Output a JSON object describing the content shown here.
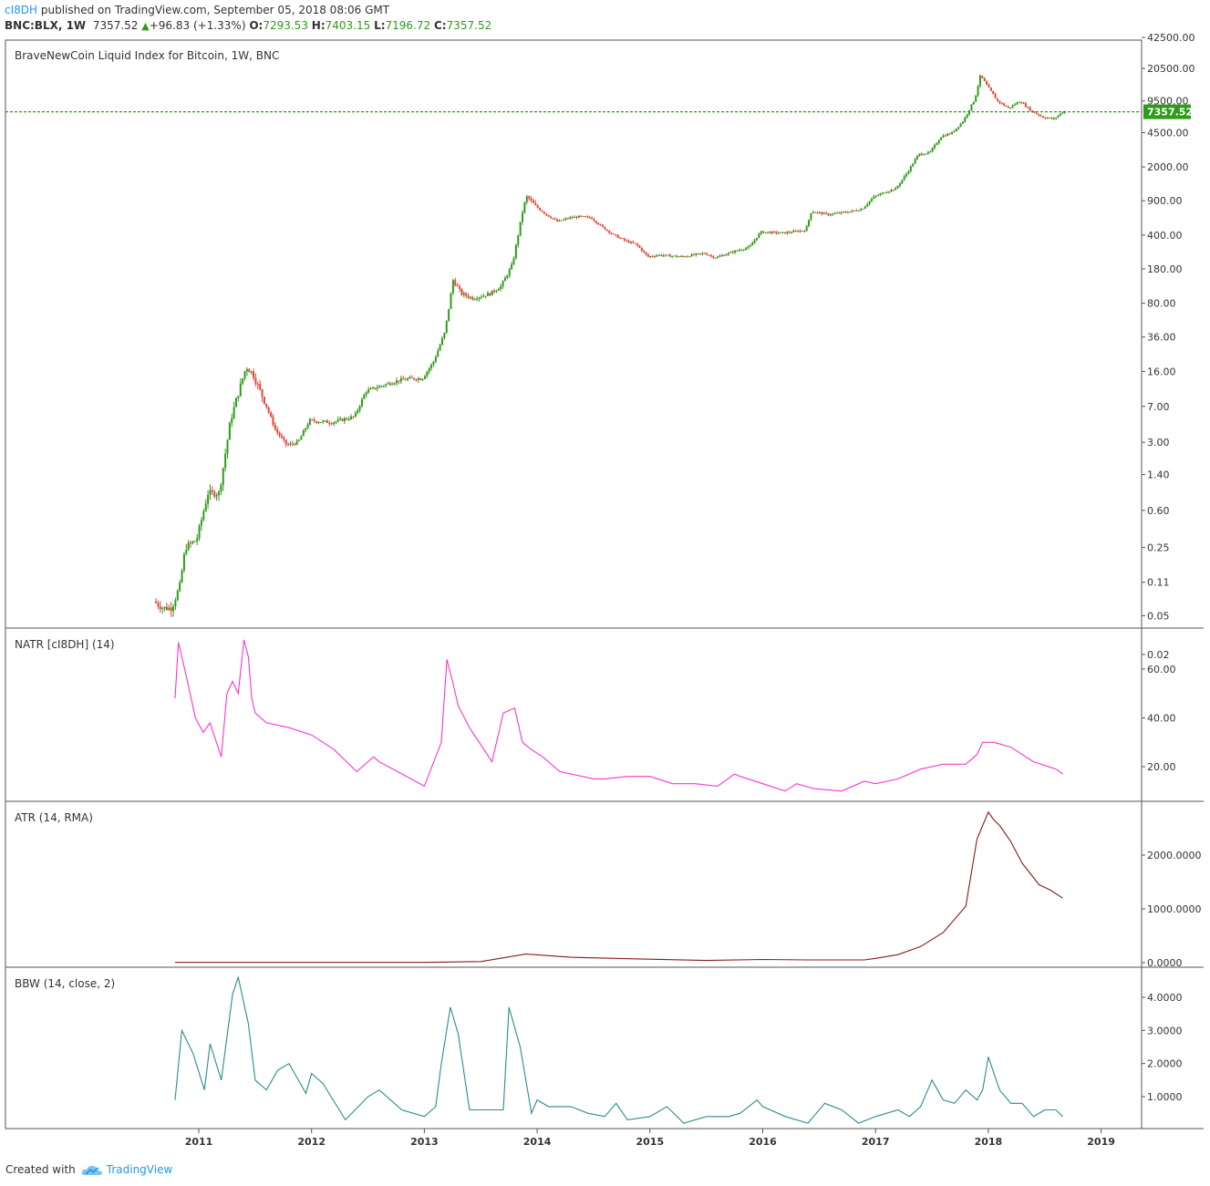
{
  "header": {
    "author": "cI8DH",
    "published": "published on TradingView.com, September 05, 2018 08:06 GMT",
    "symbol": "BNC:BLX, 1W",
    "last": "7357.52",
    "change_arrow": "▲",
    "change": "+96.83 (+1.33%)",
    "o_label": "O:",
    "o": "7293.53",
    "h_label": "H:",
    "h": "7403.15",
    "l_label": "L:",
    "l": "7196.72",
    "c_label": "C:",
    "c": "7357.52"
  },
  "footer": {
    "created_with": "Created with",
    "brand": "TradingView"
  },
  "colors": {
    "up": "#2e9c1a",
    "down": "#e0483c",
    "natr": "#ff33cc",
    "atr": "#8b1a1a",
    "bbw": "#2a8c8c",
    "last_line": "#2e9c1a",
    "grid": "#555555"
  },
  "chart_data": [
    {
      "type": "candlestick",
      "title": "BraveNewCoin Liquid Index for Bitcoin, 1W, BNC",
      "y_scale": "log",
      "y_ticks": [
        "42500.00",
        "20500.00",
        "9500.00",
        "4500.00",
        "2000.00",
        "900.00",
        "400.00",
        "180.00",
        "80.00",
        "36.00",
        "16.00",
        "7.00",
        "3.00",
        "1.40",
        "0.60",
        "0.25",
        "0.11",
        "0.05",
        "0.02"
      ],
      "last_price_label": "7357.52",
      "x_ticks": [
        "2011",
        "2012",
        "2013",
        "2014",
        "2015",
        "2016",
        "2017",
        "2018",
        "2019"
      ],
      "trend": {
        "t": [
          2010.62,
          2010.7,
          2010.78,
          2010.85,
          2010.9,
          2011.0,
          2011.1,
          2011.2,
          2011.3,
          2011.35,
          2011.44,
          2011.5,
          2011.6,
          2011.7,
          2011.8,
          2011.9,
          2012.0,
          2012.2,
          2012.4,
          2012.5,
          2012.6,
          2012.7,
          2012.8,
          2012.9,
          2013.0,
          2013.1,
          2013.2,
          2013.25,
          2013.27,
          2013.35,
          2013.45,
          2013.6,
          2013.7,
          2013.8,
          2013.9,
          2013.93,
          2014.0,
          2014.1,
          2014.2,
          2014.3,
          2014.4,
          2014.5,
          2014.6,
          2014.7,
          2014.8,
          2014.9,
          2015.0,
          2015.1,
          2015.3,
          2015.5,
          2015.6,
          2015.8,
          2015.9,
          2016.0,
          2016.2,
          2016.4,
          2016.45,
          2016.6,
          2016.8,
          2016.9,
          2017.0,
          2017.1,
          2017.2,
          2017.3,
          2017.4,
          2017.5,
          2017.6,
          2017.7,
          2017.8,
          2017.9,
          2017.95,
          2018.0,
          2018.1,
          2018.2,
          2018.3,
          2018.4,
          2018.5,
          2018.6,
          2018.68
        ],
        "v": [
          0.07,
          0.06,
          0.06,
          0.1,
          0.25,
          0.3,
          0.9,
          0.9,
          5,
          8,
          18,
          15,
          8,
          4,
          2.8,
          3,
          5,
          4.8,
          5.5,
          10,
          11,
          12,
          13,
          13.5,
          13.5,
          20,
          40,
          90,
          140,
          100,
          90,
          100,
          120,
          200,
          800,
          1000,
          800,
          650,
          550,
          600,
          620,
          600,
          480,
          400,
          350,
          320,
          240,
          250,
          240,
          260,
          235,
          280,
          300,
          430,
          420,
          450,
          700,
          650,
          700,
          740,
          980,
          1100,
          1200,
          1750,
          2700,
          2800,
          4100,
          4500,
          6000,
          10000,
          17500,
          14000,
          9500,
          8000,
          9500,
          7500,
          6500,
          6200,
          7357.52
        ]
      }
    },
    {
      "type": "line",
      "title": "NATR [cI8DH] (14)",
      "y_ticks": [
        "60.00",
        "40.00",
        "20.00"
      ],
      "ylim": [
        10,
        75
      ],
      "x": [
        2010.79,
        2010.82,
        2010.9,
        2010.97,
        2011.04,
        2011.1,
        2011.2,
        2011.25,
        2011.3,
        2011.35,
        2011.4,
        2011.44,
        2011.47,
        2011.5,
        2011.6,
        2011.8,
        2012.0,
        2012.2,
        2012.4,
        2012.55,
        2012.6,
        2012.8,
        2013.0,
        2013.15,
        2013.2,
        2013.25,
        2013.3,
        2013.4,
        2013.6,
        2013.7,
        2013.8,
        2013.87,
        2013.95,
        2014.05,
        2014.2,
        2014.4,
        2014.5,
        2014.6,
        2014.8,
        2015.0,
        2015.2,
        2015.4,
        2015.6,
        2015.75,
        2015.8,
        2016.0,
        2016.2,
        2016.3,
        2016.45,
        2016.7,
        2016.9,
        2017.0,
        2017.2,
        2017.4,
        2017.6,
        2017.8,
        2017.9,
        2017.95,
        2018.05,
        2018.2,
        2018.4,
        2018.6,
        2018.66
      ],
      "y": [
        48,
        71,
        55,
        40,
        34,
        38,
        24,
        50,
        55,
        50,
        72,
        65,
        48,
        42,
        38,
        36,
        33,
        27,
        18,
        24,
        22,
        17,
        12,
        30,
        64,
        55,
        45,
        36,
        22,
        42,
        44,
        30,
        27,
        24,
        18,
        16,
        15,
        15,
        16,
        16,
        13,
        13,
        12,
        17,
        16,
        13,
        10,
        13,
        11,
        10,
        14,
        13,
        15,
        19,
        21,
        21,
        25,
        30,
        30,
        28,
        22,
        19,
        17
      ]
    },
    {
      "type": "line",
      "title": "ATR (14, RMA)",
      "y_ticks": [
        "2000.0000",
        "1000.0000",
        "0.0000"
      ],
      "ylim": [
        0,
        2800
      ],
      "x": [
        2010.79,
        2013.0,
        2013.5,
        2013.9,
        2014.3,
        2014.9,
        2015.5,
        2016.0,
        2016.4,
        2016.9,
        2017.0,
        2017.2,
        2017.4,
        2017.6,
        2017.8,
        2017.9,
        2018.0,
        2018.05,
        2018.1,
        2018.2,
        2018.3,
        2018.45,
        2018.55,
        2018.66
      ],
      "y": [
        5,
        5,
        20,
        160,
        100,
        70,
        40,
        60,
        50,
        50,
        80,
        150,
        300,
        560,
        1050,
        2300,
        2800,
        2650,
        2550,
        2250,
        1850,
        1450,
        1350,
        1200
      ]
    },
    {
      "type": "line",
      "title": "BBW (14, close, 2)",
      "y_ticks": [
        "4.0000",
        "3.0000",
        "2.0000",
        "1.0000"
      ],
      "ylim": [
        0,
        4.7
      ],
      "x": [
        2010.79,
        2010.85,
        2010.95,
        2011.05,
        2011.1,
        2011.2,
        2011.3,
        2011.35,
        2011.44,
        2011.5,
        2011.6,
        2011.7,
        2011.8,
        2011.95,
        2012.0,
        2012.1,
        2012.3,
        2012.5,
        2012.6,
        2012.8,
        2012.9,
        2013.0,
        2013.1,
        2013.15,
        2013.23,
        2013.3,
        2013.4,
        2013.6,
        2013.7,
        2013.75,
        2013.85,
        2013.95,
        2014.0,
        2014.1,
        2014.3,
        2014.45,
        2014.6,
        2014.7,
        2014.8,
        2015.0,
        2015.15,
        2015.3,
        2015.5,
        2015.7,
        2015.8,
        2015.95,
        2016.0,
        2016.2,
        2016.4,
        2016.55,
        2016.7,
        2016.85,
        2017.0,
        2017.2,
        2017.3,
        2017.4,
        2017.5,
        2017.6,
        2017.7,
        2017.8,
        2017.9,
        2017.95,
        2018.0,
        2018.1,
        2018.2,
        2018.3,
        2018.4,
        2018.5,
        2018.6,
        2018.66
      ],
      "y": [
        0.9,
        3,
        2.3,
        1.2,
        2.6,
        1.5,
        4.1,
        4.6,
        3.2,
        1.5,
        1.2,
        1.8,
        2,
        1.1,
        1.7,
        1.4,
        0.3,
        1,
        1.2,
        0.6,
        0.5,
        0.4,
        0.7,
        2,
        3.7,
        2.9,
        0.6,
        0.6,
        0.6,
        3.7,
        2.5,
        0.5,
        0.9,
        0.7,
        0.7,
        0.5,
        0.4,
        0.8,
        0.3,
        0.4,
        0.7,
        0.2,
        0.4,
        0.4,
        0.5,
        0.9,
        0.7,
        0.4,
        0.2,
        0.8,
        0.6,
        0.2,
        0.4,
        0.6,
        0.4,
        0.7,
        1.5,
        0.9,
        0.8,
        1.2,
        0.9,
        1.2,
        2.2,
        1.2,
        0.8,
        0.8,
        0.4,
        0.6,
        0.6,
        0.4
      ]
    }
  ]
}
